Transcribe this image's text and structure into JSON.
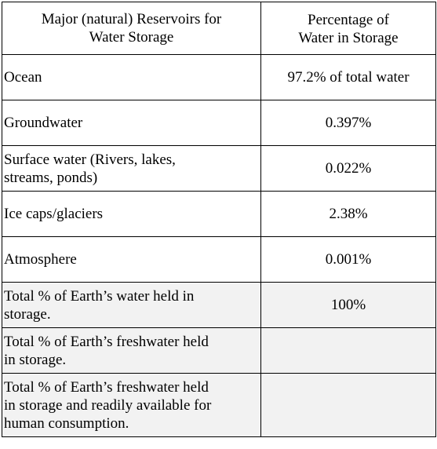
{
  "table": {
    "headers": [
      [
        "Major (natural) Reservoirs for",
        "Water Storage"
      ],
      [
        "Percentage of",
        "Water in Storage"
      ]
    ],
    "rows": [
      {
        "reservoir": [
          "Ocean"
        ],
        "percentage": "97.2% of total water",
        "shaded": false
      },
      {
        "reservoir": [
          "Groundwater"
        ],
        "percentage": "0.397%",
        "shaded": false
      },
      {
        "reservoir": [
          "Surface water (Rivers, lakes,",
          "streams, ponds)"
        ],
        "percentage": "0.022%",
        "shaded": false
      },
      {
        "reservoir": [
          "Ice caps/glaciers"
        ],
        "percentage": "2.38%",
        "shaded": false
      },
      {
        "reservoir": [
          "Atmosphere"
        ],
        "percentage": "0.001%",
        "shaded": false
      },
      {
        "reservoir": [
          "Total % of Earth’s water held in",
          "storage."
        ],
        "percentage": "100%",
        "shaded": true
      },
      {
        "reservoir": [
          "Total % of Earth’s freshwater held",
          "in storage."
        ],
        "percentage": "",
        "shaded": true
      },
      {
        "reservoir": [
          "Total % of Earth’s freshwater held",
          "in storage and readily available for",
          "human consumption."
        ],
        "percentage": "",
        "shaded": true
      }
    ]
  }
}
